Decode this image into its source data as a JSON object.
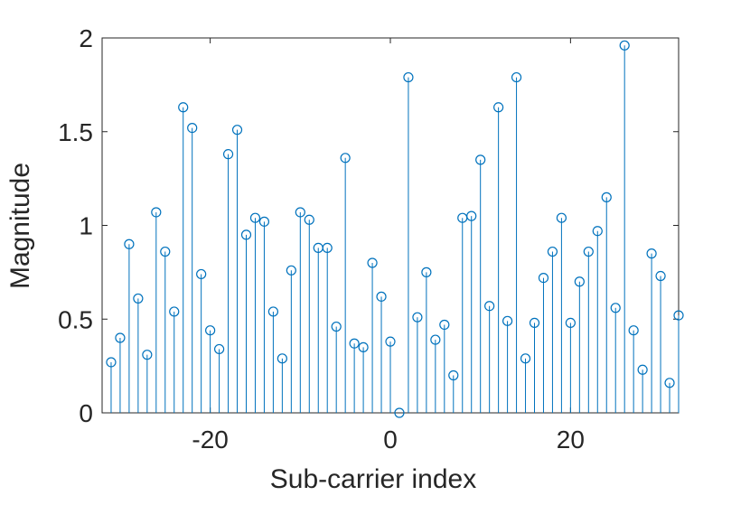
{
  "chart_data": {
    "type": "stem",
    "xlabel": "Sub-carrier index",
    "ylabel": "Magnitude",
    "xlim": [
      -32,
      32
    ],
    "ylim": [
      0,
      2
    ],
    "xticks": [
      -20,
      0,
      20
    ],
    "yticks": [
      0,
      0.5,
      1,
      1.5,
      2
    ],
    "xtick_labels": [
      "-20",
      "0",
      "20"
    ],
    "ytick_labels": [
      "0",
      "0.5",
      "1",
      "1.5",
      "2"
    ],
    "grid": false,
    "series_color": "#0072bd",
    "x": [
      -31,
      -30,
      -29,
      -28,
      -27,
      -26,
      -25,
      -24,
      -23,
      -22,
      -21,
      -20,
      -19,
      -18,
      -17,
      -16,
      -15,
      -14,
      -13,
      -12,
      -11,
      -10,
      -9,
      -8,
      -7,
      -6,
      -5,
      -4,
      -3,
      -2,
      -1,
      0,
      1,
      2,
      3,
      4,
      5,
      6,
      7,
      8,
      9,
      10,
      11,
      12,
      13,
      14,
      15,
      16,
      17,
      18,
      19,
      20,
      21,
      22,
      23,
      24,
      25,
      26,
      27,
      28,
      29,
      30,
      31,
      32
    ],
    "y": [
      0.27,
      0.4,
      0.9,
      0.61,
      0.31,
      1.07,
      0.86,
      0.54,
      1.63,
      1.52,
      0.74,
      0.44,
      0.34,
      1.38,
      1.51,
      0.95,
      1.04,
      1.02,
      0.54,
      0.29,
      0.76,
      1.07,
      1.03,
      0.88,
      0.88,
      0.46,
      1.36,
      0.37,
      0.35,
      0.8,
      0.62,
      0.38,
      0.0,
      1.79,
      0.51,
      0.75,
      0.39,
      0.47,
      0.2,
      1.04,
      1.05,
      1.35,
      0.57,
      1.63,
      0.49,
      1.79,
      0.29,
      0.48,
      0.72,
      0.86,
      1.04,
      0.48,
      0.7,
      0.86,
      0.97,
      1.15,
      0.56,
      1.96,
      0.44,
      0.23,
      0.85,
      0.73,
      0.16,
      0.52
    ]
  }
}
